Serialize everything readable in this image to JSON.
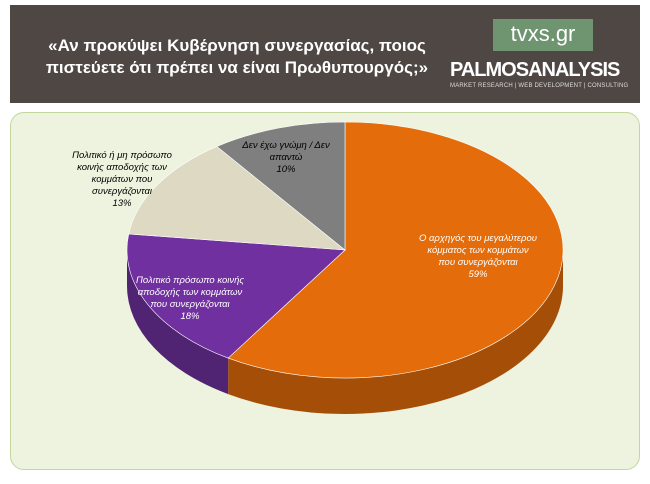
{
  "header": {
    "title": "«Αν προκύψει Κυβέρνηση συνεργασίας, ποιος πιστεύετε ότι πρέπει να είναι Πρωθυπουργός;»",
    "logo_top": "tvxs.gr",
    "logo_main": "PALMOSANALYSIS",
    "logo_sub": "MARKET RESEARCH | WEB DEVELOPMENT | CONSULTING"
  },
  "chart_data": {
    "type": "pie",
    "categories": [
      "Ο αρχηγός του μεγαλύτερου κόμματος των κομμάτων που συνεργάζονται",
      "Πολιτικό πρόσωπο κοινής αποδοχής των κομμάτων που συνεργάζονται",
      "Πολιτικό ή μη πρόσωπο κοινής αποδοχής των κομμάτων που συνεργάζονται",
      "Δεν έχω γνώμη / Δεν απαντώ"
    ],
    "values": [
      59,
      18,
      13,
      10
    ],
    "value_labels": [
      "59%",
      "18%",
      "13%",
      "10%"
    ],
    "colors": [
      "#e46c0a",
      "#7030a0",
      "#ddd9c3",
      "#7f7f7f"
    ]
  }
}
